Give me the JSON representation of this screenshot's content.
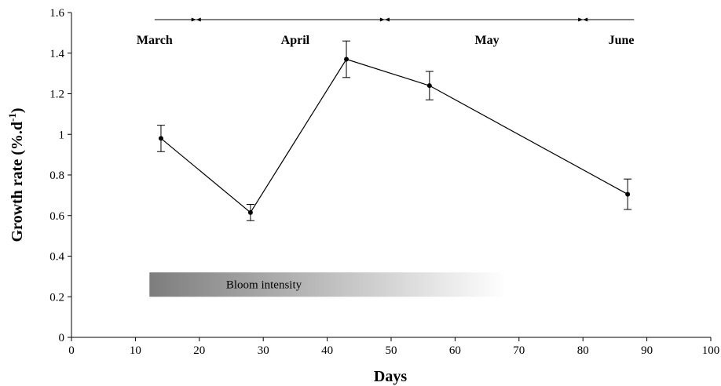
{
  "chart_data": {
    "type": "line",
    "xlabel": "Days",
    "ylabel_main": "Growth rate (%.d",
    "ylabel_sup": "-1",
    "ylabel_close": ")",
    "xlim": [
      0,
      100
    ],
    "ylim": [
      0,
      1.6
    ],
    "xticks": [
      0,
      10,
      20,
      30,
      40,
      50,
      60,
      70,
      80,
      90,
      100
    ],
    "yticks": [
      0,
      0.2,
      0.4,
      0.6,
      0.8,
      1,
      1.2,
      1.4,
      1.6
    ],
    "ytick_labels": [
      "0",
      "0.2",
      "0.4",
      "0.6",
      "0.8",
      "1",
      "1.2",
      "1.4",
      "1.6"
    ],
    "grid": false,
    "series": [
      {
        "x": [
          14,
          28,
          43,
          56,
          87
        ],
        "y": [
          0.98,
          0.615,
          1.37,
          1.24,
          0.705
        ],
        "err": [
          0.065,
          0.04,
          0.09,
          0.07,
          0.075
        ]
      }
    ],
    "months": [
      {
        "label": "March",
        "from": 13,
        "to": 19.5,
        "label_x": 13
      },
      {
        "label": "April",
        "from": 19.5,
        "to": 49,
        "label_x": 35
      },
      {
        "label": "May",
        "from": 49,
        "to": 80,
        "label_x": 65
      },
      {
        "label": "June",
        "from": 80,
        "to": 88,
        "label_x": 86
      }
    ],
    "month_line_y": 1.565,
    "bloom": {
      "label": "Bloom intensity",
      "x_start": 12.2,
      "x_end": 68,
      "y_bottom": 0.2,
      "y_top": 0.32,
      "color_start": "#7d7d7d",
      "color_end": "#ffffff"
    }
  }
}
